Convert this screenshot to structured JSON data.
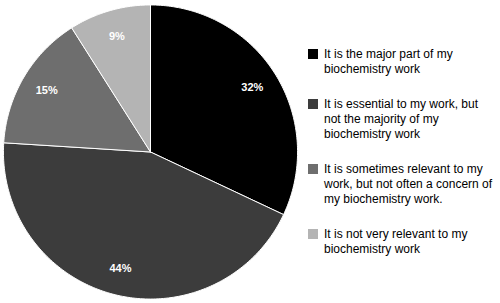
{
  "chart_data": {
    "type": "pie",
    "categories": [
      "It is the major part of my biochemistry work",
      "It is essential to my work, but not the majority of my biochemistry work",
      "It is sometimes relevant to my work, but not often a concern of my biochemistry work.",
      "It is not very relevant to my biochemistry work"
    ],
    "values": [
      32,
      44,
      15,
      9
    ],
    "value_labels": [
      "32%",
      "44%",
      "15%",
      "9%"
    ],
    "colors": [
      "#000000",
      "#3c3c3c",
      "#6e6e6e",
      "#b4b4b4"
    ],
    "data_labels": true,
    "legend": "right"
  }
}
